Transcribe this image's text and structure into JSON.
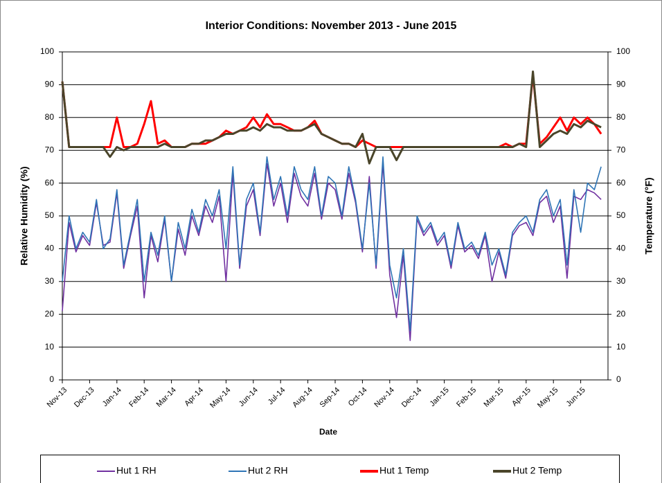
{
  "chart_data": {
    "type": "line",
    "title": "Interior Conditions: November 2013 - June 2015",
    "x_label": "Date",
    "y_label": "Relative Humidity (%)",
    "y2_label": "Temperature (°F)",
    "categories": [
      "Nov-13",
      null,
      null,
      null,
      "Dec-13",
      null,
      null,
      null,
      "Jan-14",
      null,
      null,
      null,
      "Feb-14",
      null,
      null,
      null,
      "Mar-14",
      null,
      null,
      null,
      "Apr-14",
      null,
      null,
      null,
      "May-14",
      null,
      null,
      null,
      "Jun-14",
      null,
      null,
      null,
      "Jul-14",
      null,
      null,
      null,
      "Aug-14",
      null,
      null,
      null,
      "Sep-14",
      null,
      null,
      null,
      "Oct-14",
      null,
      null,
      null,
      "Nov-14",
      null,
      null,
      null,
      "Dec-14",
      null,
      null,
      null,
      "Jan-15",
      null,
      null,
      null,
      "Feb-15",
      null,
      null,
      null,
      "Mar-15",
      null,
      null,
      null,
      "Apr-15",
      null,
      null,
      null,
      "May-15",
      null,
      null,
      null,
      "Jun-15",
      null,
      null,
      null
    ],
    "series": [
      {
        "name": "Hut 1 RH",
        "color": "#7030a0",
        "axis": "y",
        "values": [
          21,
          48,
          39,
          44,
          41,
          54,
          41,
          42,
          57,
          34,
          44,
          53,
          25,
          44,
          36,
          49,
          30,
          46,
          38,
          50,
          44,
          53,
          48,
          56,
          30,
          63,
          34,
          53,
          58,
          44,
          66,
          53,
          60,
          48,
          63,
          56,
          53,
          63,
          49,
          60,
          58,
          49,
          63,
          54,
          39,
          62,
          34,
          66,
          32,
          19,
          38,
          12,
          49,
          44,
          47,
          41,
          44,
          34,
          47,
          39,
          41,
          37,
          44,
          30,
          39,
          31,
          44,
          47,
          48,
          44,
          54,
          56,
          48,
          53,
          31,
          56,
          55,
          58,
          57,
          55
        ]
      },
      {
        "name": "Hut 2 RH",
        "color": "#2e75b6",
        "axis": "y",
        "values": [
          30,
          50,
          40,
          45,
          42,
          55,
          40,
          43,
          58,
          35,
          45,
          55,
          30,
          45,
          38,
          50,
          30,
          48,
          40,
          52,
          45,
          55,
          50,
          58,
          40,
          65,
          35,
          55,
          60,
          45,
          68,
          55,
          62,
          50,
          65,
          58,
          55,
          65,
          50,
          62,
          60,
          50,
          65,
          55,
          40,
          60,
          35,
          68,
          35,
          25,
          40,
          15,
          50,
          45,
          48,
          42,
          45,
          35,
          48,
          40,
          42,
          38,
          45,
          35,
          40,
          32,
          45,
          48,
          50,
          45,
          55,
          58,
          50,
          55,
          35,
          58,
          45,
          60,
          58,
          65
        ]
      },
      {
        "name": "Hut 1 Temp",
        "color": "#ff0000",
        "axis": "y2",
        "values": [
          91,
          71,
          71,
          71,
          71,
          71,
          71,
          71,
          80,
          71,
          71,
          72,
          78,
          85,
          72,
          73,
          71,
          71,
          71,
          72,
          72,
          72,
          73,
          74,
          76,
          75,
          76,
          77,
          80,
          77,
          81,
          78,
          78,
          77,
          76,
          76,
          77,
          79,
          75,
          74,
          73,
          72,
          72,
          71,
          73,
          72,
          71,
          71,
          71,
          71,
          71,
          71,
          71,
          71,
          71,
          71,
          71,
          71,
          71,
          71,
          71,
          71,
          71,
          71,
          71,
          72,
          71,
          72,
          72,
          93,
          72,
          74,
          77,
          80,
          76,
          80,
          78,
          80,
          78,
          75
        ]
      },
      {
        "name": "Hut 2 Temp",
        "color": "#4a452a",
        "axis": "y2",
        "values": [
          91,
          71,
          71,
          71,
          71,
          71,
          71,
          68,
          71,
          70,
          71,
          71,
          71,
          71,
          71,
          72,
          71,
          71,
          71,
          72,
          72,
          73,
          73,
          74,
          75,
          75,
          76,
          76,
          77,
          76,
          78,
          77,
          77,
          76,
          76,
          76,
          77,
          78,
          75,
          74,
          73,
          72,
          72,
          71,
          75,
          66,
          71,
          71,
          71,
          67,
          71,
          71,
          71,
          71,
          71,
          71,
          71,
          71,
          71,
          71,
          71,
          71,
          71,
          71,
          71,
          71,
          71,
          72,
          71,
          94,
          71,
          73,
          75,
          76,
          75,
          78,
          77,
          79,
          78,
          77
        ]
      }
    ],
    "ylim": [
      0,
      100
    ],
    "yticks": [
      0,
      10,
      20,
      30,
      40,
      50,
      60,
      70,
      80,
      90,
      100
    ],
    "y2lim": [
      0,
      100
    ],
    "y2ticks": [
      0,
      10,
      20,
      30,
      40,
      50,
      60,
      70,
      80,
      90,
      100
    ],
    "grid": true,
    "legend": "bottom"
  }
}
